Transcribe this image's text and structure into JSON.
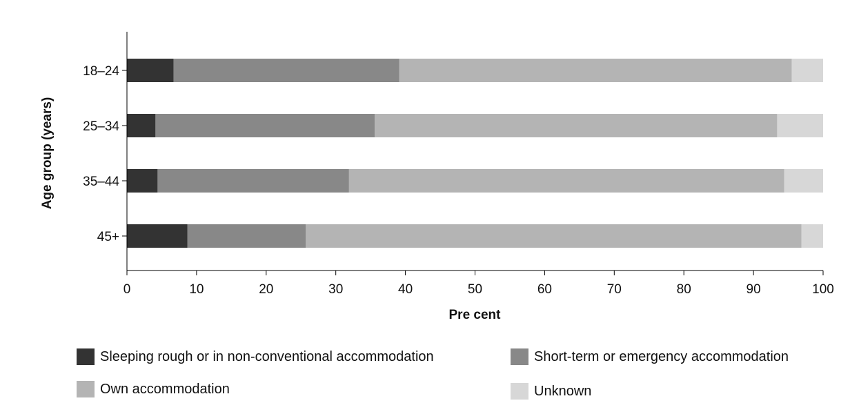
{
  "chart_data": {
    "type": "bar",
    "orientation": "horizontal",
    "stacked": true,
    "categories": [
      "18–24",
      "25–34",
      "35–44",
      "45+"
    ],
    "series": [
      {
        "name": "Sleeping rough or in non-conventional accommodation",
        "color": "#333333",
        "values": [
          6.7,
          4.1,
          4.4,
          8.7
        ]
      },
      {
        "name": "Short-term or emergency accommodation",
        "color": "#888888",
        "values": [
          32.4,
          31.5,
          27.5,
          17.0
        ]
      },
      {
        "name": "Own accommodation",
        "color": "#b4b4b4",
        "values": [
          56.4,
          57.8,
          62.5,
          71.2
        ]
      },
      {
        "name": "Unknown",
        "color": "#d7d7d7",
        "values": [
          4.5,
          6.6,
          5.6,
          3.1
        ]
      }
    ],
    "xlabel": "Pre cent",
    "ylabel": "Age group (years)",
    "xlim": [
      0,
      100
    ],
    "xticks": [
      "0",
      "10",
      "20",
      "30",
      "40",
      "50",
      "60",
      "70",
      "80",
      "90",
      "100"
    ],
    "grid": false,
    "legend_position": "bottom"
  }
}
